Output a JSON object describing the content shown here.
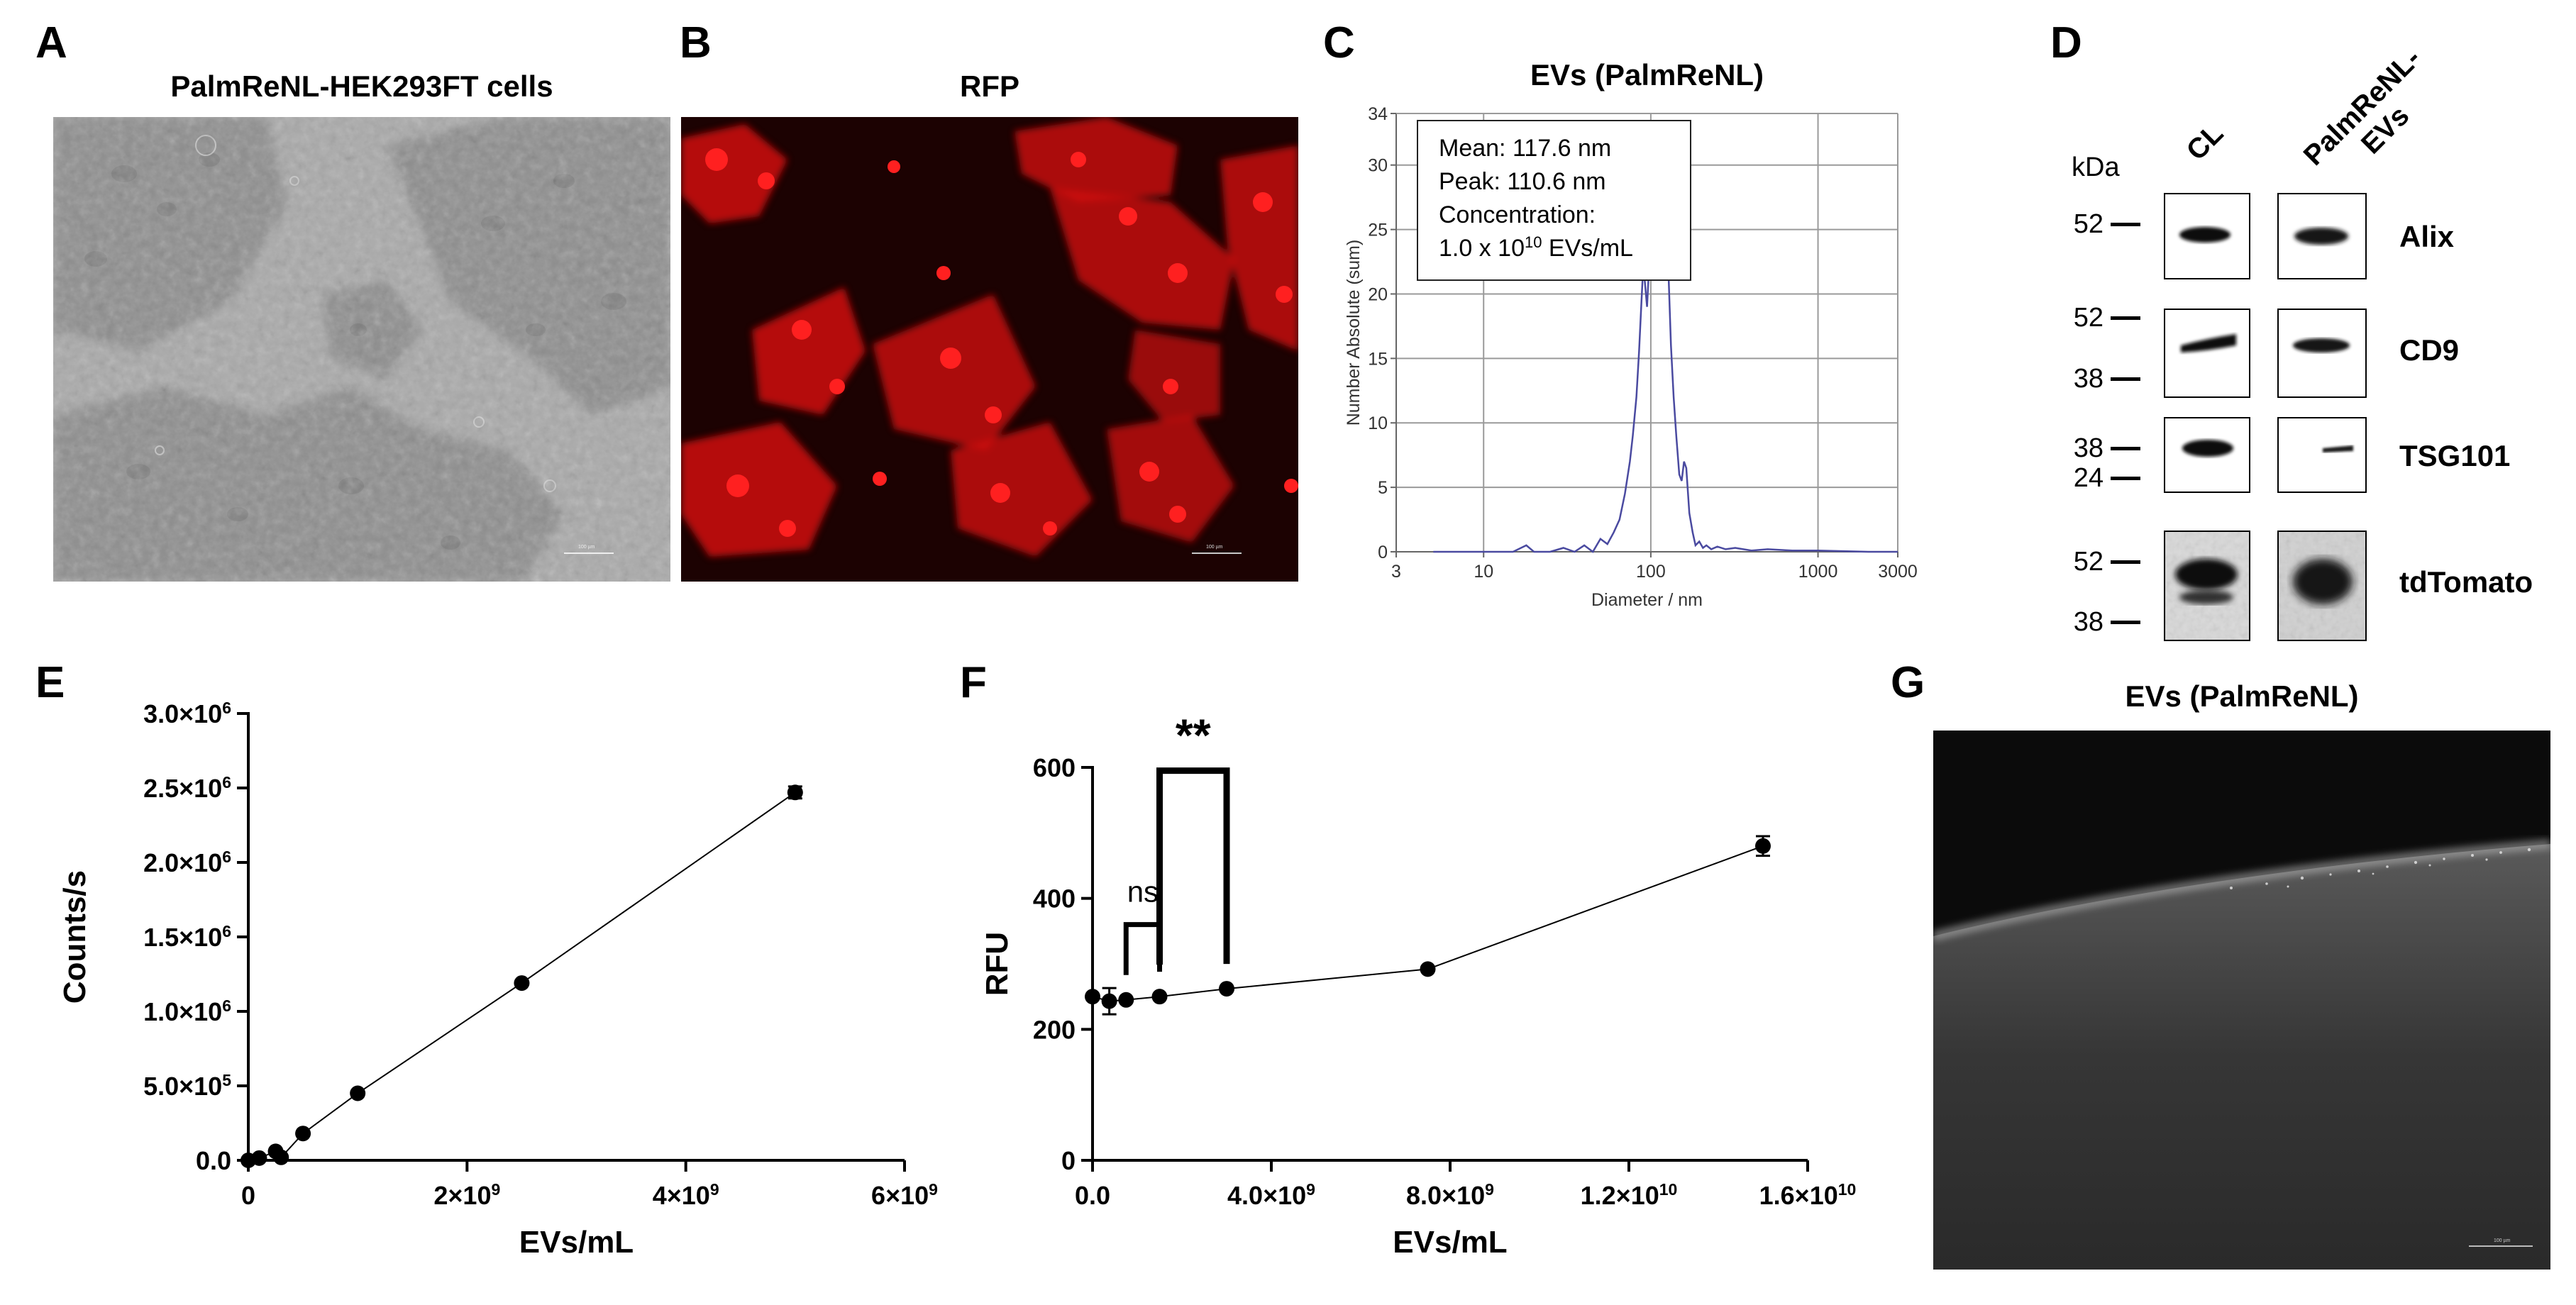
{
  "panels": {
    "A": {
      "letter": "A",
      "title": "PalmReNL-HEK293FT cells",
      "scalebar_text": "100 µm"
    },
    "B": {
      "letter": "B",
      "title": "RFP",
      "scalebar_text": "100 µm"
    },
    "C": {
      "letter": "C"
    },
    "D": {
      "letter": "D"
    },
    "E": {
      "letter": "E"
    },
    "F": {
      "letter": "F"
    },
    "G": {
      "letter": "G",
      "title": "EVs (PalmReNL)",
      "scalebar_text": "100 µm"
    }
  },
  "western": {
    "unit_label": "kDa",
    "lanes": [
      "CL",
      "PalmReNL-\nEVs"
    ],
    "rows": [
      {
        "protein": "Alix",
        "markers": [
          "52"
        ]
      },
      {
        "protein": "CD9",
        "markers": [
          "52",
          "38"
        ]
      },
      {
        "protein": "TSG101",
        "markers": [
          "38",
          "24"
        ]
      },
      {
        "protein": "tdTomato",
        "markers": [
          "52",
          "38"
        ]
      }
    ]
  },
  "chart_data": [
    {
      "panel": "C",
      "type": "line",
      "title": "EVs (PalmReNL)",
      "xlabel": "Diameter / nm",
      "ylabel": "Number Absolute (sum)",
      "xscale": "log",
      "xlim": [
        3,
        3000
      ],
      "ylim": [
        0,
        34
      ],
      "xticks": [
        3,
        10,
        100,
        1000,
        3000
      ],
      "xtick_labels": [
        "3",
        "10",
        "100",
        "1000",
        "3000"
      ],
      "yticks": [
        0,
        5,
        10,
        15,
        20,
        25,
        30,
        34
      ],
      "ytick_labels": [
        "0",
        "5",
        "10",
        "15",
        "20",
        "25",
        "30",
        "34"
      ],
      "grid": true,
      "color": "#4a4aa0",
      "annotation_lines": [
        "Mean: 117.6 nm",
        "Peak: 110.6 nm",
        "Concentration:"
      ],
      "annotation_conc_prefix": "1.0 x 10",
      "annotation_conc_exp": "10",
      "annotation_conc_suffix": " EVs/mL",
      "x": [
        5,
        10,
        15,
        18,
        20,
        25,
        30,
        35,
        40,
        45,
        50,
        55,
        60,
        65,
        70,
        75,
        78,
        82,
        85,
        88,
        90,
        92,
        95,
        98,
        100,
        103,
        106,
        110,
        113,
        116,
        120,
        124,
        128,
        132,
        137,
        142,
        148,
        153,
        158,
        163,
        170,
        178,
        185,
        195,
        205,
        215,
        230,
        250,
        280,
        320,
        400,
        500,
        700,
        1000,
        2000,
        3000
      ],
      "y": [
        0,
        0,
        0,
        0.5,
        0,
        0,
        0.3,
        0,
        0.5,
        0,
        1.0,
        0.6,
        1.5,
        2.5,
        4.5,
        7.0,
        9.0,
        12.0,
        15.5,
        19.5,
        22.0,
        21.0,
        19.0,
        22.5,
        27.0,
        31.0,
        32.5,
        30.0,
        27.0,
        25.0,
        26.5,
        25.0,
        21.0,
        16.0,
        12.0,
        9.0,
        6.0,
        5.5,
        7.0,
        6.5,
        3.0,
        1.5,
        0.5,
        0.8,
        0.3,
        0.5,
        0.2,
        0.4,
        0.2,
        0.3,
        0.1,
        0.2,
        0.1,
        0.1,
        0,
        0
      ]
    },
    {
      "panel": "E",
      "type": "line",
      "xlabel": "EVs/mL",
      "ylabel": "Counts/s",
      "xlim": [
        0,
        6000000000
      ],
      "ylim": [
        0,
        3000000
      ],
      "xticks": [
        0,
        2000000000,
        4000000000,
        6000000000
      ],
      "xtick_labels": [
        {
          "m": "0",
          "e": ""
        },
        {
          "m": "2×10",
          "e": "9"
        },
        {
          "m": "4×10",
          "e": "9"
        },
        {
          "m": "6×10",
          "e": "9"
        }
      ],
      "yticks": [
        0,
        500000,
        1000000,
        1500000,
        2000000,
        2500000,
        3000000
      ],
      "ytick_labels": [
        {
          "m": "0.0",
          "e": ""
        },
        {
          "m": "5.0×10",
          "e": "5"
        },
        {
          "m": "1.0×10",
          "e": "6"
        },
        {
          "m": "1.5×10",
          "e": "6"
        },
        {
          "m": "2.0×10",
          "e": "6"
        },
        {
          "m": "2.5×10",
          "e": "6"
        },
        {
          "m": "3.0×10",
          "e": "6"
        }
      ],
      "x": [
        0,
        100000000,
        250000000,
        300000000,
        500000000,
        1000000000,
        2500000000,
        5000000000
      ],
      "y": [
        0,
        15000,
        60000,
        20000,
        180000,
        450000,
        1190000,
        2470000
      ],
      "yerr": [
        0,
        0,
        0,
        0,
        0,
        0,
        0,
        40000
      ]
    },
    {
      "panel": "F",
      "type": "line",
      "xlabel": "EVs/mL",
      "ylabel": "RFU",
      "xlim": [
        0,
        16000000000
      ],
      "ylim": [
        0,
        600
      ],
      "xticks": [
        0,
        4000000000,
        8000000000,
        12000000000,
        16000000000
      ],
      "xtick_labels": [
        {
          "m": "0.0",
          "e": ""
        },
        {
          "m": "4.0×10",
          "e": "9"
        },
        {
          "m": "8.0×10",
          "e": "9"
        },
        {
          "m": "1.2×10",
          "e": "10"
        },
        {
          "m": "1.6×10",
          "e": "10"
        }
      ],
      "yticks": [
        0,
        200,
        400,
        600
      ],
      "ytick_labels": [
        {
          "m": "0",
          "e": ""
        },
        {
          "m": "200",
          "e": ""
        },
        {
          "m": "400",
          "e": ""
        },
        {
          "m": "600",
          "e": ""
        }
      ],
      "x": [
        0,
        375000000,
        750000000,
        1500000000,
        3000000000,
        7500000000,
        15000000000
      ],
      "y": [
        250,
        243,
        245,
        250,
        262,
        292,
        480
      ],
      "yerr": [
        0,
        20,
        0,
        0,
        0,
        0,
        15
      ],
      "annotations": [
        {
          "label": "ns",
          "x1": 750000000,
          "x2": 1500000000,
          "y_bar": 360
        },
        {
          "label": "**",
          "x1": 1500000000,
          "x2": 3000000000,
          "y_bar": 595
        }
      ]
    }
  ]
}
